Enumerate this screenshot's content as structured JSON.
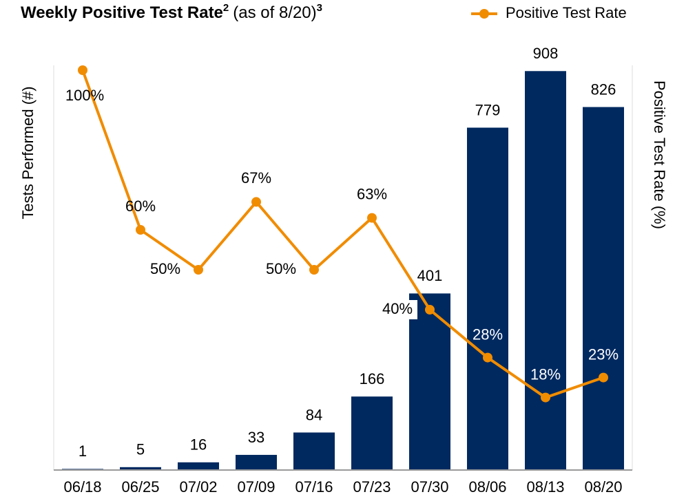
{
  "chart_data": {
    "type": "bar_line",
    "title": "Weekly Positive Test Rate",
    "title_note": "2",
    "subtitle": "(as of 8/20)",
    "subtitle_note": "3",
    "y_label": "Tests Performed (#)",
    "y2_label": "Positive Test Rate (%)",
    "categories": [
      "06/18",
      "06/25",
      "07/02",
      "07/09",
      "07/16",
      "07/23",
      "07/30",
      "08/06",
      "08/13",
      "08/20"
    ],
    "ylim": [
      0,
      910
    ],
    "y2lim": [
      0,
      100
    ],
    "legend": "top-right",
    "series": [
      {
        "name": "Tests Performed",
        "type": "bar",
        "color": "#002960",
        "values": [
          1,
          5,
          16,
          33,
          84,
          166,
          401,
          779,
          908,
          826
        ]
      },
      {
        "name": "Positive Test Rate",
        "type": "line",
        "axis": "y2",
        "color": "#f08c00",
        "values": [
          100,
          60,
          50,
          67,
          50,
          63,
          40,
          28,
          18,
          23
        ],
        "value_labels": [
          "100%",
          "60%",
          "50%",
          "67%",
          "50%",
          "63%",
          "40%",
          "28%",
          "18%",
          "23%"
        ]
      }
    ]
  }
}
